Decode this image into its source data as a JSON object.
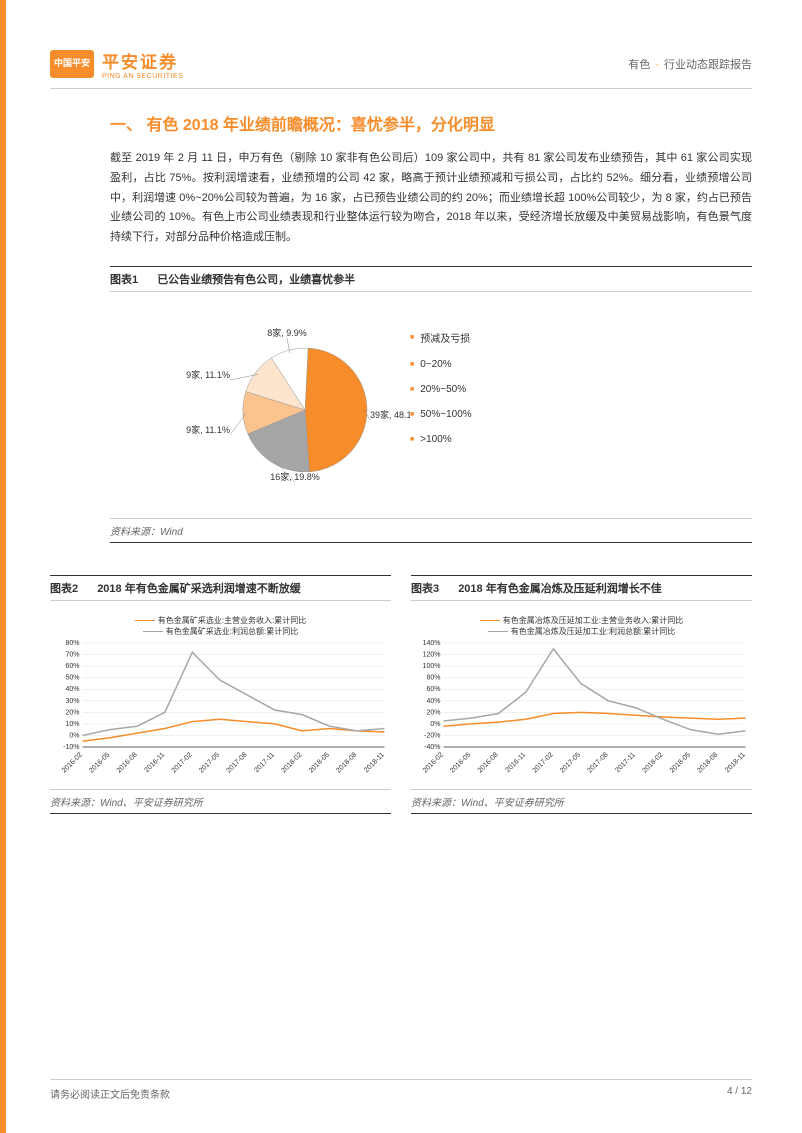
{
  "header": {
    "logo_line1": "中国平安",
    "logo_line2": "",
    "company_cn": "平安证券",
    "company_en": "PING AN SECURITIES",
    "right_cat": "有色",
    "right_dot": "·",
    "right_type": "行业动态跟踪报告"
  },
  "section_title": "一、  有色 2018 年业绩前瞻概况：喜忧参半，分化明显",
  "body_text": "截至 2019 年 2 月 11 日，申万有色（剔除 10 家非有色公司后）109 家公司中，共有 81 家公司发布业绩预告，其中 61 家公司实现盈利，占比 75%。按利润增速看，业绩预增的公司 42 家，略高于预计业绩预减和亏损公司，占比约 52%。细分看，业绩预增公司中，利润增速 0%~20%公司较为普遍，为 16 家，占已预告业绩公司的约 20%；而业绩增长超 100%公司较少，为 8 家，约占已预告业绩公司的 10%。有色上市公司业绩表现和行业整体运行较为吻合，2018 年以来，受经济增长放缓及中美贸易战影响，有色景气度持续下行，对部分品种价格造成压制。",
  "chart1": {
    "title_num": "图表1",
    "title_text": "已公告业绩预告有色公司，业绩喜忧参半",
    "type": "pie",
    "slices": [
      {
        "label": "预减及亏损",
        "count": 39,
        "pct": 48.1,
        "color": "#f78c2a",
        "callout": "39家, 48.1%"
      },
      {
        "label": "0~20%",
        "count": 16,
        "pct": 19.8,
        "color": "#a6a6a6",
        "callout": "16家, 19.8%"
      },
      {
        "label": "20%~50%",
        "count": 9,
        "pct": 11.1,
        "color": "#fbc38e",
        "callout": "9家, 11.1%"
      },
      {
        "label": "50%~100%",
        "count": 9,
        "pct": 11.1,
        "color": "#fde4cc",
        "callout": "9家, 11.1%"
      },
      {
        "label": ">100%",
        "count": 8,
        "pct": 9.9,
        "color": "#ffffff",
        "callout": "8家, 9.9%"
      }
    ],
    "legend_items": [
      "预减及亏损",
      "0~20%",
      "20%~50%",
      "50%~100%",
      ">100%"
    ],
    "legend_colors": [
      "#f78c2a",
      "#a6a6a6",
      "#fbc38e",
      "#fde4cc",
      "#ffffff"
    ],
    "source": "资料来源：Wind"
  },
  "chart2": {
    "title_num": "图表2",
    "title_text": "2018 年有色金属矿采选利润增速不断放缓",
    "type": "line",
    "series": [
      {
        "name": "有色金属矿采选业:主营业务收入:累计同比",
        "color": "#f78c2a"
      },
      {
        "name": "有色金属矿采选业:利润总额:累计同比",
        "color": "#a6a6a6"
      }
    ],
    "x_categories": [
      "2016-02",
      "2016-05",
      "2016-08",
      "2016-11",
      "2017-02",
      "2017-05",
      "2017-08",
      "2017-11",
      "2018-02",
      "2018-05",
      "2018-08",
      "2018-11"
    ],
    "ylim": [
      -10,
      80
    ],
    "ytick_step": 10,
    "label_fontsize": 7,
    "grid_color": "#e0e0e0",
    "background_color": "#ffffff",
    "revenue_values": [
      -5,
      -2,
      2,
      6,
      12,
      14,
      12,
      10,
      4,
      6,
      4,
      3
    ],
    "profit_values": [
      0,
      5,
      8,
      20,
      72,
      48,
      35,
      22,
      18,
      8,
      4,
      6
    ],
    "source": "资料来源：Wind、平安证券研究所"
  },
  "chart3": {
    "title_num": "图表3",
    "title_text": "2018 年有色金属冶炼及压延利润增长不佳",
    "type": "line",
    "series": [
      {
        "name": "有色金属冶炼及压延加工业:主营业务收入:累计同比",
        "color": "#f78c2a"
      },
      {
        "name": "有色金属冶炼及压延加工业:利润总额:累计同比",
        "color": "#a6a6a6"
      }
    ],
    "x_categories": [
      "2016-02",
      "2016-05",
      "2016-08",
      "2016-11",
      "2017-02",
      "2017-05",
      "2017-08",
      "2017-11",
      "2018-02",
      "2018-05",
      "2018-08",
      "2018-11"
    ],
    "ylim": [
      -40,
      140
    ],
    "ytick_step": 20,
    "label_fontsize": 7,
    "grid_color": "#e0e0e0",
    "background_color": "#ffffff",
    "revenue_values": [
      -4,
      0,
      3,
      8,
      18,
      20,
      18,
      15,
      12,
      10,
      8,
      10
    ],
    "profit_values": [
      5,
      10,
      18,
      55,
      130,
      70,
      40,
      28,
      8,
      -10,
      -18,
      -12
    ],
    "source": "资料来源：Wind、平安证券研究所"
  },
  "footer": {
    "left": "请务必阅读正文后免责条款",
    "right": "4 / 12"
  }
}
